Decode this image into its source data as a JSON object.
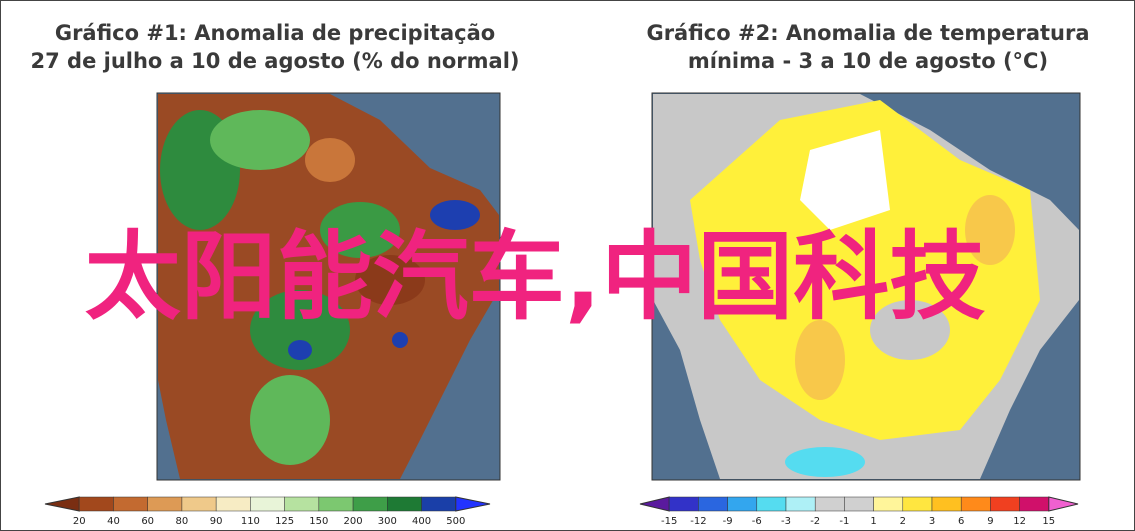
{
  "panels": [
    {
      "title": [
        "Gráfico #1: Anomalia de precipitação",
        "27 de julho a 10 de agosto (% do normal)"
      ],
      "colorbar_ticks": [
        "20",
        "40",
        "60",
        "80",
        "90",
        "110",
        "125",
        "150",
        "200",
        "300",
        "400",
        "500"
      ]
    },
    {
      "title": [
        "Gráfico #2: Anomalia de temperatura",
        "mínima - 3 a 10 de agosto (°C)"
      ],
      "colorbar_ticks": [
        "-15",
        "-12",
        "-9",
        "-6",
        "-3",
        "-2",
        "-1",
        "1",
        "2",
        "3",
        "6",
        "9",
        "12",
        "15"
      ]
    }
  ],
  "overlay_text": "太阳能汽车,中国科技"
}
